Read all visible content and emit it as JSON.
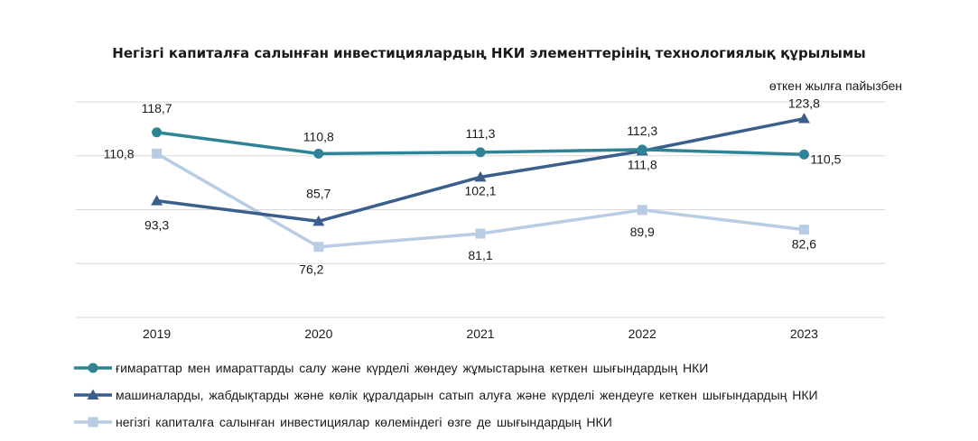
{
  "chart_data": {
    "type": "line",
    "title": "Негізгі капиталға салынған инвестициялардың НКИ элементтерінің технологиялық құрылымы",
    "subtitle": "өткен жылға пайызбен",
    "categories": [
      "2019",
      "2020",
      "2021",
      "2022",
      "2023"
    ],
    "ylim": [
      50,
      130
    ],
    "grid": true,
    "legend_position": "bottom",
    "series": [
      {
        "name": "ғимараттар мен имараттарды салу және күрделі жөндеу жұмыстарына кеткен шығындардың НКИ",
        "values": [
          118.7,
          110.8,
          111.3,
          112.3,
          110.5
        ],
        "labels": [
          "118,7",
          "110,8",
          "111,3",
          "112,3",
          "110,5"
        ],
        "color": "#2e8496",
        "marker": "circle"
      },
      {
        "name": "машиналарды,  жабдықтарды және көлік құралдарын сатып алуға және күрделі жендеуге кеткен шығындардың НКИ",
        "values": [
          93.3,
          85.7,
          102.1,
          111.8,
          123.8
        ],
        "labels": [
          "93,3",
          "85,7",
          "102,1",
          "111,8",
          "123,8"
        ],
        "color": "#3b5f8c",
        "marker": "triangle"
      },
      {
        "name": "негізгі капиталға  салынған инвестициялар  көлеміндегі өзге де шығындардың НКИ",
        "values": [
          110.8,
          76.2,
          81.1,
          89.9,
          82.6
        ],
        "labels": [
          "110,8",
          "76,2",
          "81,1",
          "89,9",
          "82,6"
        ],
        "color": "#b8cce4",
        "marker": "square"
      }
    ]
  }
}
